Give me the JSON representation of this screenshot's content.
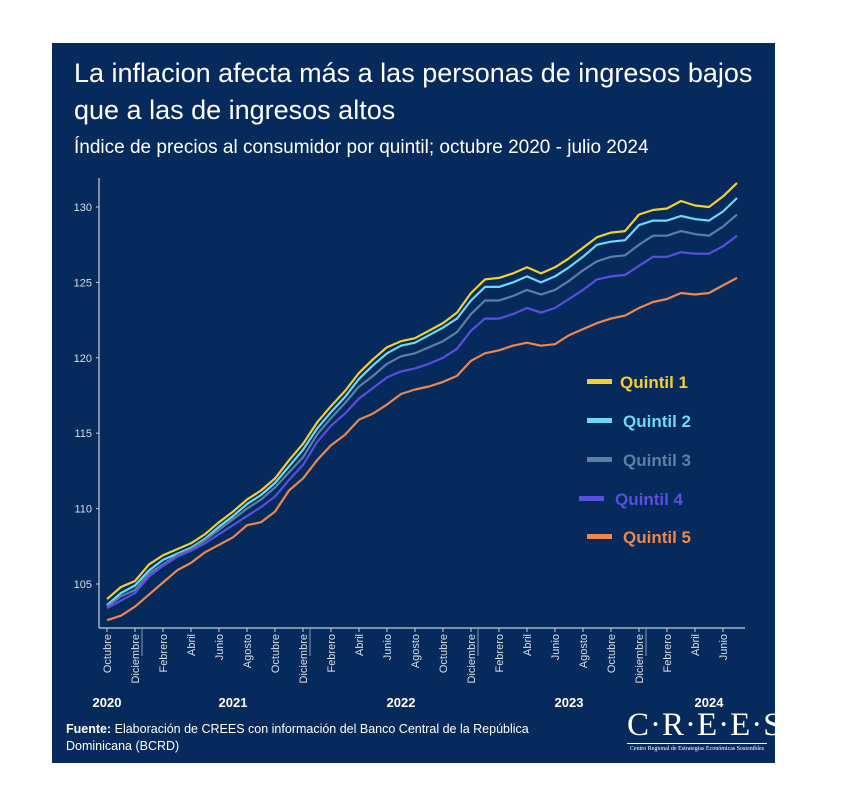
{
  "header": {
    "title": "La inflacion afecta más a las personas de ingresos bajos que a las de ingresos altos",
    "subtitle": "Índice de precios al consumidor por quintil; octubre 2020 - julio 2024"
  },
  "footer": {
    "source_label": "Fuente:",
    "source_text": " Elaboración de CREES con información del Banco Central de la República Dominicana (BCRD)",
    "logo_text": "C·R·E·E·S",
    "logo_subtitle": "Centro Regional de Estrategias Económicas Sostenibles"
  },
  "chart_data": {
    "type": "line",
    "title": "La inflacion afecta más a las personas de ingresos bajos que a las de ingresos altos",
    "subtitle": "Índice de precios al consumidor por quintil; octubre 2020 - julio 2024",
    "x_start": "2020-10",
    "x_end": "2024-07",
    "x_frequency": "monthly",
    "x_tick_labels": [
      "Octubre",
      "Diciembre",
      "Febrero",
      "Abril",
      "Junio",
      "Agosto",
      "Octubre",
      "Diciembre",
      "Febrero",
      "Abril",
      "Junio",
      "Agosto",
      "Octubre",
      "Diciembre",
      "Febrero",
      "Abril",
      "Junio",
      "Agosto",
      "Octubre",
      "Diciembre",
      "Febrero",
      "Abril",
      "Junio"
    ],
    "x_year_labels": [
      "2020",
      "2021",
      "2022",
      "2023",
      "2024"
    ],
    "y_ticks": [
      105,
      110,
      115,
      120,
      125,
      130
    ],
    "ylim": [
      102,
      132
    ],
    "grid": false,
    "legend_position": "right",
    "background": "#062a5b",
    "series": [
      {
        "name": "Quintil 1",
        "color": "#f3cf2f",
        "values": [
          104.0,
          104.8,
          105.2,
          106.3,
          106.9,
          107.3,
          107.7,
          108.3,
          109.1,
          109.8,
          110.6,
          111.2,
          112.0,
          113.2,
          114.3,
          115.7,
          116.8,
          117.8,
          119.0,
          119.9,
          120.7,
          121.1,
          121.3,
          121.8,
          122.3,
          123.0,
          124.3,
          125.2,
          125.3,
          125.6,
          126.0,
          125.6,
          126.0,
          126.6,
          127.3,
          128.0,
          128.3,
          128.4,
          129.5,
          129.8,
          129.9,
          130.4,
          130.1,
          130.0,
          130.7,
          131.6
        ]
      },
      {
        "name": "Quintil 2",
        "color": "#6ed8f7",
        "values": [
          103.6,
          104.4,
          104.9,
          105.9,
          106.6,
          107.0,
          107.4,
          108.0,
          108.8,
          109.5,
          110.3,
          110.9,
          111.7,
          112.8,
          113.9,
          115.3,
          116.4,
          117.4,
          118.6,
          119.5,
          120.3,
          120.8,
          121.0,
          121.5,
          122.0,
          122.6,
          123.8,
          124.7,
          124.7,
          125.0,
          125.4,
          125.0,
          125.4,
          126.0,
          126.7,
          127.5,
          127.7,
          127.8,
          128.8,
          129.1,
          129.1,
          129.4,
          129.2,
          129.1,
          129.7,
          130.6
        ]
      },
      {
        "name": "Quintil 3",
        "color": "#5b7fa6",
        "values": [
          103.5,
          104.2,
          104.6,
          105.7,
          106.3,
          106.9,
          107.3,
          107.9,
          108.6,
          109.3,
          110.0,
          110.6,
          111.4,
          112.4,
          113.4,
          114.9,
          116.0,
          117.0,
          118.1,
          118.8,
          119.6,
          120.1,
          120.3,
          120.7,
          121.1,
          121.7,
          122.9,
          123.8,
          123.8,
          124.1,
          124.5,
          124.2,
          124.5,
          125.1,
          125.8,
          126.4,
          126.7,
          126.8,
          127.5,
          128.1,
          128.1,
          128.4,
          128.2,
          128.1,
          128.7,
          129.5
        ]
      },
      {
        "name": "Quintil 4",
        "color": "#5a4ee2",
        "values": [
          103.4,
          103.9,
          104.4,
          105.5,
          106.2,
          106.8,
          107.2,
          107.7,
          108.3,
          108.9,
          109.5,
          110.1,
          110.8,
          111.9,
          112.9,
          114.4,
          115.5,
          116.3,
          117.3,
          118.0,
          118.7,
          119.1,
          119.3,
          119.6,
          120.0,
          120.6,
          121.8,
          122.6,
          122.6,
          122.9,
          123.3,
          123.0,
          123.3,
          123.9,
          124.5,
          125.2,
          125.4,
          125.5,
          126.1,
          126.7,
          126.7,
          127.0,
          126.9,
          126.9,
          127.4,
          128.1
        ]
      },
      {
        "name": "Quintil 5",
        "color": "#ef874d",
        "values": [
          102.6,
          102.9,
          103.5,
          104.3,
          105.1,
          105.9,
          106.4,
          107.1,
          107.6,
          108.1,
          108.9,
          109.1,
          109.8,
          111.2,
          112.0,
          113.2,
          114.2,
          114.9,
          115.9,
          116.3,
          116.9,
          117.6,
          117.9,
          118.1,
          118.4,
          118.8,
          119.8,
          120.3,
          120.5,
          120.8,
          121.0,
          120.8,
          120.9,
          121.5,
          121.9,
          122.3,
          122.6,
          122.8,
          123.3,
          123.7,
          123.9,
          124.3,
          124.2,
          124.3,
          124.8,
          125.3
        ]
      }
    ]
  }
}
